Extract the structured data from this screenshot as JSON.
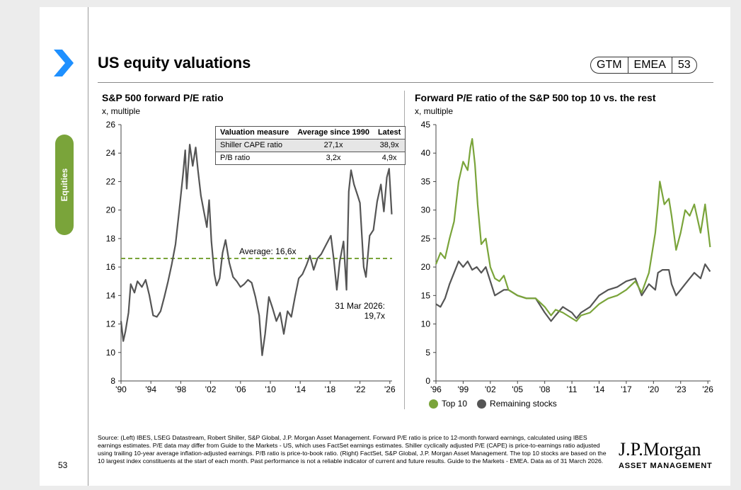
{
  "slide": {
    "title": "US equity valuations",
    "badge": [
      "GTM",
      "EMEA",
      "53"
    ],
    "side_tab": "Equities",
    "page_number": "53",
    "source": "Source: (Left) IBES, LSEG Datastream, Robert Shiller, S&P Global, J.P. Morgan Asset Management. Forward P/E ratio is price to 12-month forward earnings, calculated using IBES earnings estimates. P/E data may differ from Guide to the Markets - US, which uses FactSet earnings estimates. Shiller cyclically adjusted P/E (CAPE) is price-to-earnings ratio adjusted using trailing 10-year average inflation-adjusted earnings. P/B ratio is price-to-book ratio. (Right) FactSet, S&P Global, J.P. Morgan Asset Management. The top 10 stocks are based on the 10 largest index constituents at the start of each month. Past performance is not a reliable indicator of current and future results. Guide to the Markets - EMEA. Data as of 31 March 2026.",
    "brand_line1": "J.P.Morgan",
    "brand_line2": "ASSET MANAGEMENT"
  },
  "table": {
    "headers": [
      "Valuation measure",
      "Average since 1990",
      "Latest"
    ],
    "rows": [
      {
        "measure": "Shiller CAPE ratio",
        "average": "27,1x",
        "latest": "38,9x"
      },
      {
        "measure": "P/B ratio",
        "average": "3,2x",
        "latest": "4,9x"
      }
    ]
  },
  "chart_data": [
    {
      "type": "line",
      "title": "S&P 500 forward P/E ratio",
      "ylabel": "x, multiple",
      "xlabel": "",
      "xlim": [
        1990,
        2026.3
      ],
      "ylim": [
        8,
        26
      ],
      "x_ticks": [
        1990,
        1994,
        1998,
        2002,
        2006,
        2010,
        2014,
        2018,
        2022,
        2026
      ],
      "x_tick_labels": [
        "'90",
        "'94",
        "'98",
        "'02",
        "'06",
        "'10",
        "'14",
        "'18",
        "'22",
        "'26"
      ],
      "y_ticks": [
        8,
        10,
        12,
        14,
        16,
        18,
        20,
        22,
        24,
        26
      ],
      "average": 16.6,
      "average_label": "Average: 16,6x",
      "latest_label_1": "31 Mar 2026:",
      "latest_label_2": "19,7x",
      "colors": {
        "line": "#555555",
        "average": "#7aa43a"
      },
      "series": [
        {
          "name": "Forward P/E",
          "points": [
            [
              1990,
              12.2
            ],
            [
              1990.3,
              10.8
            ],
            [
              1990.6,
              11.5
            ],
            [
              1991,
              12.8
            ],
            [
              1991.3,
              14.8
            ],
            [
              1991.8,
              14.2
            ],
            [
              1992.2,
              15.0
            ],
            [
              1992.8,
              14.6
            ],
            [
              1993.3,
              15.1
            ],
            [
              1993.8,
              14.0
            ],
            [
              1994.3,
              12.6
            ],
            [
              1994.8,
              12.5
            ],
            [
              1995.3,
              12.9
            ],
            [
              1995.8,
              13.9
            ],
            [
              1996.3,
              15.0
            ],
            [
              1996.8,
              16.2
            ],
            [
              1997.3,
              17.6
            ],
            [
              1997.8,
              20.0
            ],
            [
              1998.3,
              22.5
            ],
            [
              1998.6,
              24.2
            ],
            [
              1998.8,
              21.5
            ],
            [
              1999.2,
              24.6
            ],
            [
              1999.6,
              23.1
            ],
            [
              2000,
              24.4
            ],
            [
              2000.3,
              22.8
            ],
            [
              2000.7,
              21.0
            ],
            [
              2001.1,
              19.9
            ],
            [
              2001.5,
              18.8
            ],
            [
              2001.8,
              20.7
            ],
            [
              2002.1,
              17.8
            ],
            [
              2002.5,
              15.5
            ],
            [
              2002.8,
              14.7
            ],
            [
              2003.2,
              15.2
            ],
            [
              2003.6,
              17.0
            ],
            [
              2004,
              17.9
            ],
            [
              2004.5,
              16.3
            ],
            [
              2005,
              15.3
            ],
            [
              2005.5,
              15.0
            ],
            [
              2006,
              14.6
            ],
            [
              2006.5,
              14.8
            ],
            [
              2007,
              15.1
            ],
            [
              2007.5,
              14.9
            ],
            [
              2008,
              13.9
            ],
            [
              2008.5,
              12.6
            ],
            [
              2008.9,
              9.8
            ],
            [
              2009.3,
              11.3
            ],
            [
              2009.8,
              13.9
            ],
            [
              2010.3,
              13.1
            ],
            [
              2010.8,
              12.2
            ],
            [
              2011.3,
              12.8
            ],
            [
              2011.8,
              11.3
            ],
            [
              2012.3,
              12.9
            ],
            [
              2012.8,
              12.5
            ],
            [
              2013.3,
              13.9
            ],
            [
              2013.8,
              15.2
            ],
            [
              2014.3,
              15.5
            ],
            [
              2014.8,
              16.1
            ],
            [
              2015.3,
              16.8
            ],
            [
              2015.8,
              15.8
            ],
            [
              2016.3,
              16.6
            ],
            [
              2016.8,
              16.9
            ],
            [
              2017.3,
              17.4
            ],
            [
              2017.8,
              17.9
            ],
            [
              2018.1,
              18.2
            ],
            [
              2018.5,
              16.5
            ],
            [
              2018.9,
              14.4
            ],
            [
              2019.3,
              16.4
            ],
            [
              2019.8,
              17.8
            ],
            [
              2020.2,
              14.4
            ],
            [
              2020.5,
              21.3
            ],
            [
              2020.8,
              22.8
            ],
            [
              2021.2,
              21.8
            ],
            [
              2021.7,
              21.0
            ],
            [
              2022,
              20.5
            ],
            [
              2022.5,
              16.0
            ],
            [
              2022.8,
              15.3
            ],
            [
              2023.3,
              18.2
            ],
            [
              2023.8,
              18.6
            ],
            [
              2024.3,
              20.6
            ],
            [
              2024.8,
              21.8
            ],
            [
              2025.2,
              19.9
            ],
            [
              2025.6,
              22.3
            ],
            [
              2025.9,
              22.9
            ],
            [
              2026.25,
              19.7
            ]
          ]
        }
      ]
    },
    {
      "type": "line",
      "title": "Forward P/E ratio of the S&P 500 top 10 vs. the rest",
      "ylabel": "x, multiple",
      "xlabel": "",
      "xlim": [
        1996,
        2026.3
      ],
      "ylim": [
        0,
        45
      ],
      "x_ticks": [
        1996,
        1999,
        2002,
        2005,
        2008,
        2011,
        2014,
        2017,
        2020,
        2023,
        2026
      ],
      "x_tick_labels": [
        "'96",
        "'99",
        "'02",
        "'05",
        "'08",
        "'11",
        "'14",
        "'17",
        "'20",
        "'23",
        "'26"
      ],
      "y_ticks": [
        0,
        5,
        10,
        15,
        20,
        25,
        30,
        35,
        40,
        45
      ],
      "colors": {
        "Top 10": "#7aa43a",
        "Remaining stocks": "#555555"
      },
      "series": [
        {
          "name": "Top 10",
          "points": [
            [
              1996,
              20.5
            ],
            [
              1996.5,
              22.5
            ],
            [
              1997,
              21.5
            ],
            [
              1997.5,
              25
            ],
            [
              1998,
              28
            ],
            [
              1998.5,
              35
            ],
            [
              1999,
              38.5
            ],
            [
              1999.5,
              37
            ],
            [
              1999.8,
              41
            ],
            [
              2000,
              42.5
            ],
            [
              2000.3,
              38
            ],
            [
              2000.6,
              31
            ],
            [
              2001,
              24
            ],
            [
              2001.5,
              25
            ],
            [
              2002,
              20
            ],
            [
              2002.5,
              18
            ],
            [
              2003,
              17.5
            ],
            [
              2003.5,
              18.5
            ],
            [
              2004,
              16
            ],
            [
              2005,
              15
            ],
            [
              2006,
              14.5
            ],
            [
              2007,
              14.5
            ],
            [
              2008,
              13
            ],
            [
              2008.7,
              11.5
            ],
            [
              2009.2,
              12.5
            ],
            [
              2010,
              12
            ],
            [
              2011,
              11
            ],
            [
              2011.5,
              10.5
            ],
            [
              2012,
              11.5
            ],
            [
              2013,
              12
            ],
            [
              2014,
              13.5
            ],
            [
              2015,
              14.5
            ],
            [
              2016,
              15
            ],
            [
              2017,
              16
            ],
            [
              2018,
              17.5
            ],
            [
              2018.7,
              15.5
            ],
            [
              2019.5,
              19
            ],
            [
              2020.2,
              26
            ],
            [
              2020.5,
              31
            ],
            [
              2020.7,
              35
            ],
            [
              2021.2,
              31
            ],
            [
              2021.7,
              32
            ],
            [
              2022,
              29
            ],
            [
              2022.5,
              23
            ],
            [
              2023,
              26
            ],
            [
              2023.5,
              30
            ],
            [
              2024,
              29
            ],
            [
              2024.5,
              31
            ],
            [
              2025.2,
              26
            ],
            [
              2025.7,
              31
            ],
            [
              2026.25,
              23.5
            ]
          ]
        },
        {
          "name": "Remaining stocks",
          "points": [
            [
              1996,
              13.5
            ],
            [
              1996.5,
              13
            ],
            [
              1997,
              14.5
            ],
            [
              1997.5,
              17
            ],
            [
              1998,
              19
            ],
            [
              1998.5,
              21
            ],
            [
              1999,
              20
            ],
            [
              1999.5,
              21
            ],
            [
              2000,
              19.5
            ],
            [
              2000.5,
              20
            ],
            [
              2001,
              19
            ],
            [
              2001.5,
              20
            ],
            [
              2002,
              17.5
            ],
            [
              2002.5,
              15
            ],
            [
              2003,
              15.5
            ],
            [
              2003.5,
              16
            ],
            [
              2004,
              16
            ],
            [
              2005,
              15
            ],
            [
              2006,
              14.5
            ],
            [
              2007,
              14.5
            ],
            [
              2008,
              12
            ],
            [
              2008.7,
              10.5
            ],
            [
              2009.2,
              11.5
            ],
            [
              2010,
              13
            ],
            [
              2011,
              12
            ],
            [
              2011.5,
              11
            ],
            [
              2012,
              12
            ],
            [
              2013,
              13
            ],
            [
              2014,
              15
            ],
            [
              2015,
              16
            ],
            [
              2016,
              16.5
            ],
            [
              2017,
              17.5
            ],
            [
              2018,
              18
            ],
            [
              2018.7,
              15
            ],
            [
              2019.5,
              17
            ],
            [
              2020.2,
              16
            ],
            [
              2020.5,
              19
            ],
            [
              2021,
              19.5
            ],
            [
              2021.7,
              19.5
            ],
            [
              2022,
              17
            ],
            [
              2022.5,
              15
            ],
            [
              2023,
              16
            ],
            [
              2023.5,
              17
            ],
            [
              2024,
              18
            ],
            [
              2024.5,
              19
            ],
            [
              2025.2,
              18
            ],
            [
              2025.7,
              20.5
            ],
            [
              2026.25,
              19.2
            ]
          ]
        }
      ]
    }
  ]
}
